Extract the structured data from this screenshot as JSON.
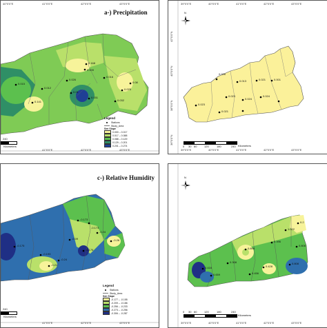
{
  "panels": {
    "a": {
      "title": "a-) Precipitation",
      "lon_ticks": [
        "40°0'0\"E",
        "41°0'0\"E",
        "42°0'0\"E",
        "43°0'0\"E",
        "44°0'0\"E"
      ],
      "values": [
        "0.168",
        "0.015",
        "0.012",
        "0.026",
        "0.009",
        "0.016",
        "0.025",
        "0.141",
        "0.031",
        "0.032",
        "0.01",
        "0.08",
        "0.044"
      ],
      "legend": {
        "title": "Legend",
        "stations": "Stations",
        "study_area": "Study_Area",
        "sen_slope": "Sen Slope",
        "classes": [
          {
            "label": "0.000 – 0.017",
            "color": "#f7f39a"
          },
          {
            "label": "0.017 – 0.088",
            "color": "#b9e06a"
          },
          {
            "label": "0.088 – 0.129",
            "color": "#5cc04e"
          },
          {
            "label": "0.129 – 0.201",
            "color": "#2f8f66"
          },
          {
            "label": "0.201 – 0.274",
            "color": "#1f3f95"
          }
        ]
      },
      "scale_end": "240",
      "scale_unit": "Kilometers"
    },
    "b": {
      "lon_ticks": [
        "39°0'0\"E",
        "40°0'0\"E",
        "41°0'0\"E",
        "42°0'0\"E",
        "43°0'0\"E",
        "44°0'0\"E"
      ],
      "lat_ticks": [
        "36°0'0\"N",
        "38°0'0\"N",
        "40°0'0\"N",
        "42°0'0\"N"
      ],
      "values": [
        "0.001",
        "0.026",
        "0.013",
        "0.021",
        "0.023",
        "0.024",
        "0.024",
        "0.023",
        "0.021"
      ],
      "scale_ticks": [
        "0",
        "30",
        "60",
        "120",
        "180",
        "240"
      ],
      "scale_unit": "Kilometers",
      "north": "N"
    },
    "c": {
      "title": "c-) Relative Humidity",
      "lon_ticks": [
        "40°0'0\"E",
        "41°0'0\"E",
        "42°0'0\"E",
        "43°0'0\"E",
        "44°0'0\"E"
      ],
      "values": [
        "-0.173",
        "-0.173",
        "-0.26",
        "-0.176",
        "-0.193",
        "-0.21",
        "-0.09",
        "-0.24",
        "-0.175",
        "-0.24"
      ],
      "legend": {
        "title": "Legend",
        "stations": "Stations",
        "study_area": "Study_Area",
        "sen_slope": "Sen Slope",
        "classes": [
          {
            "label": "-0.177 – -0.155",
            "color": "#f7f39a"
          },
          {
            "label": "-0.209 – -0.186",
            "color": "#b9e06a"
          },
          {
            "label": "-0.256 – -0.233",
            "color": "#5cc04e"
          },
          {
            "label": "-0.273 – -0.256",
            "color": "#2f6fae"
          },
          {
            "label": "-0.306 – -0.287",
            "color": "#1f2f85"
          }
        ]
      },
      "scale_end": "240",
      "scale_unit": "Kilometers"
    },
    "d": {
      "lon_ticks": [
        "39°0'0\"E",
        "40°0'0\"E",
        "41°0'0\"E",
        "42°0'0\"E",
        "43°0'0\"E",
        "44°0'0\"E"
      ],
      "values": [
        "0.2",
        "1.022",
        "0.899",
        "0.396",
        "0.806",
        "0.416",
        "0.308",
        "0.428",
        "0.808",
        "0.659",
        "0.456"
      ],
      "scale_ticks": [
        "0",
        "30",
        "60",
        "120",
        "180",
        "240"
      ],
      "scale_unit": "Kilometers",
      "north": "N"
    }
  }
}
